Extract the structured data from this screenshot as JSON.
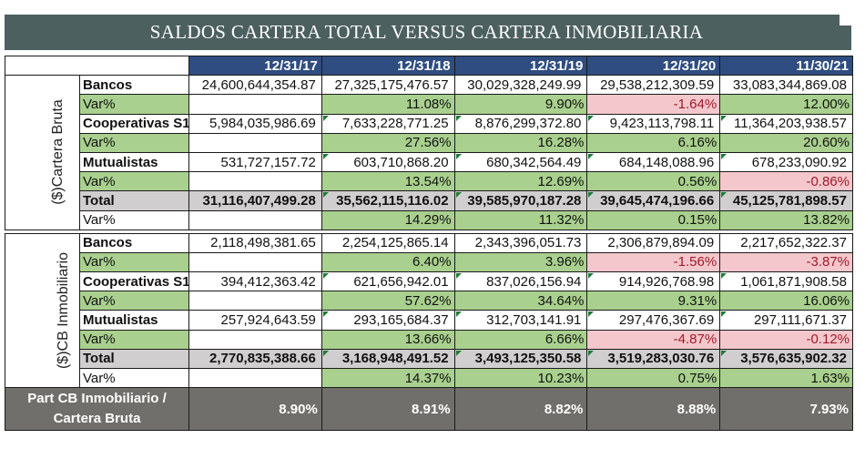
{
  "title": "SALDOS CARTERA TOTAL VERSUS CARTERA INMOBILIARIA",
  "columns": [
    "12/31/17",
    "12/31/18",
    "12/31/19",
    "12/31/20",
    "11/30/21"
  ],
  "sections": [
    {
      "group_label": "($)Cartera Bruta",
      "rows": [
        {
          "label": "Bancos",
          "type": "value",
          "values": [
            "24,600,644,354.87",
            "27,325,175,476.57",
            "30,029,328,249.99",
            "29,538,212,309.59",
            "33,083,344,869.08"
          ]
        },
        {
          "label": "Var%",
          "type": "var",
          "values": [
            "",
            "11.08%",
            "9.90%",
            "-1.64%",
            "12.00%"
          ]
        },
        {
          "label": "Cooperativas S1",
          "type": "value",
          "values": [
            "5,984,035,986.69",
            "7,633,228,771.25",
            "8,876,299,372.80",
            "9,423,113,798.11",
            "11,364,203,938.57"
          ]
        },
        {
          "label": "Var%",
          "type": "var",
          "values": [
            "",
            "27.56%",
            "16.28%",
            "6.16%",
            "20.60%"
          ]
        },
        {
          "label": "Mutualistas",
          "type": "value",
          "values": [
            "531,727,157.72",
            "603,710,868.20",
            "680,342,564.49",
            "684,148,088.96",
            "678,233,090.92"
          ]
        },
        {
          "label": "Var%",
          "type": "var",
          "values": [
            "",
            "13.54%",
            "12.69%",
            "0.56%",
            "-0.86%"
          ]
        },
        {
          "label": "Total",
          "type": "total",
          "values": [
            "31,116,407,499.28",
            "35,562,115,116.02",
            "39,585,970,187.28",
            "39,645,474,196.66",
            "45,125,781,898.57"
          ]
        },
        {
          "label": "Var%",
          "type": "var",
          "values": [
            "",
            "14.29%",
            "11.32%",
            "0.15%",
            "13.82%"
          ]
        }
      ]
    },
    {
      "group_label": "($)CB Inmobiliario",
      "rows": [
        {
          "label": "Bancos",
          "type": "value",
          "values": [
            "2,118,498,381.65",
            "2,254,125,865.14",
            "2,343,396,051.73",
            "2,306,879,894.09",
            "2,217,652,322.37"
          ]
        },
        {
          "label": "Var%",
          "type": "var",
          "values": [
            "",
            "6.40%",
            "3.96%",
            "-1.56%",
            "-3.87%"
          ]
        },
        {
          "label": "Cooperativas S1",
          "type": "value",
          "values": [
            "394,412,363.42",
            "621,656,942.01",
            "837,026,156.94",
            "914,926,768.98",
            "1,061,871,908.58"
          ]
        },
        {
          "label": "Var%",
          "type": "var",
          "values": [
            "",
            "57.62%",
            "34.64%",
            "9.31%",
            "16.06%"
          ]
        },
        {
          "label": "Mutualistas",
          "type": "value",
          "values": [
            "257,924,643.59",
            "293,165,684.37",
            "312,703,141.91",
            "297,476,367.69",
            "297,111,671.37"
          ]
        },
        {
          "label": "Var%",
          "type": "var",
          "values": [
            "",
            "13.66%",
            "6.66%",
            "-4.87%",
            "-0.12%"
          ]
        },
        {
          "label": "Total",
          "type": "total",
          "values": [
            "2,770,835,388.66",
            "3,168,948,491.52",
            "3,493,125,350.58",
            "3,519,283,030.76",
            "3,576,635,902.32"
          ]
        },
        {
          "label": "Var%",
          "type": "var",
          "values": [
            "",
            "14.37%",
            "10.23%",
            "0.75%",
            "1.63%"
          ]
        }
      ]
    }
  ],
  "footer": {
    "label": "Part CB Inmobiliario / Cartera Bruta",
    "values": [
      "8.90%",
      "8.91%",
      "8.82%",
      "8.88%",
      "7.93%"
    ]
  },
  "colors": {
    "title_bg": "#4d6060",
    "header_bg": "#2f4d80",
    "positive_var_bg": "#a9d08e",
    "negative_var_bg": "#f4c7cc",
    "negative_var_text": "#a01a2a",
    "total_bg": "#d0cece",
    "footer_bg": "#706f6c"
  }
}
